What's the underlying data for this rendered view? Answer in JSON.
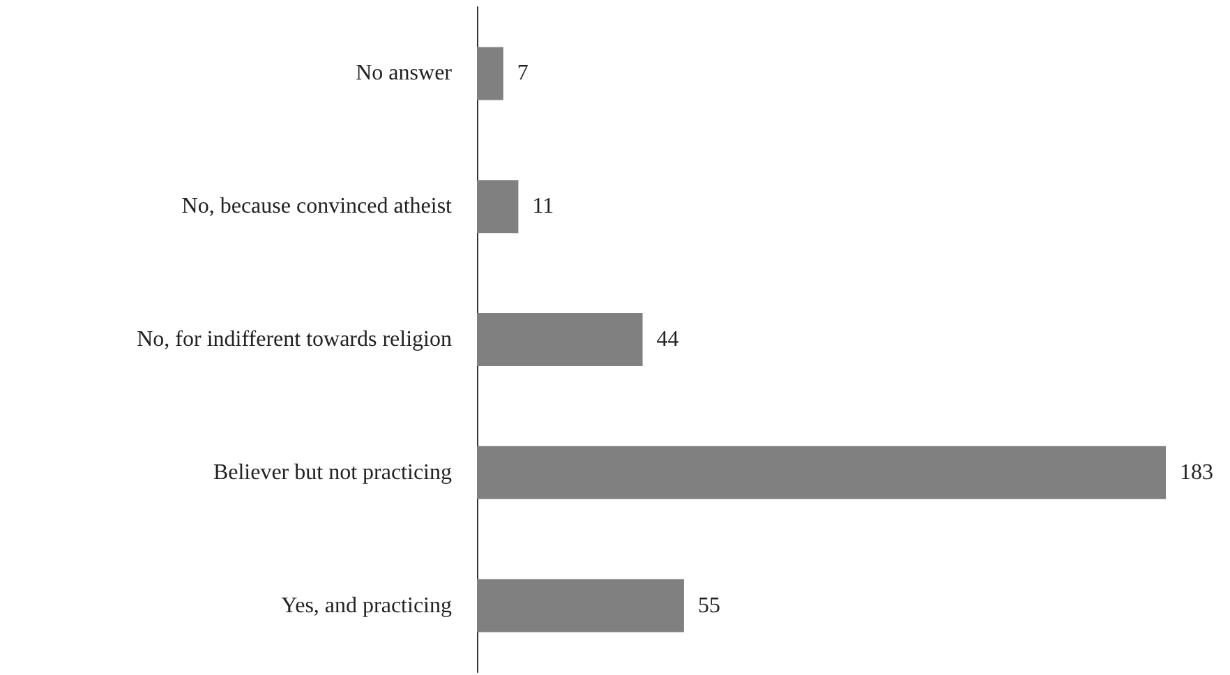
{
  "chart_data": {
    "type": "bar",
    "orientation": "horizontal",
    "categories": [
      "No answer",
      "No, because convinced atheist",
      "No, for indifferent towards religion",
      "Believer but not practicing",
      "Yes, and practicing"
    ],
    "values": [
      7,
      11,
      44,
      183,
      55
    ],
    "color": "#808080",
    "data_labels": true
  }
}
